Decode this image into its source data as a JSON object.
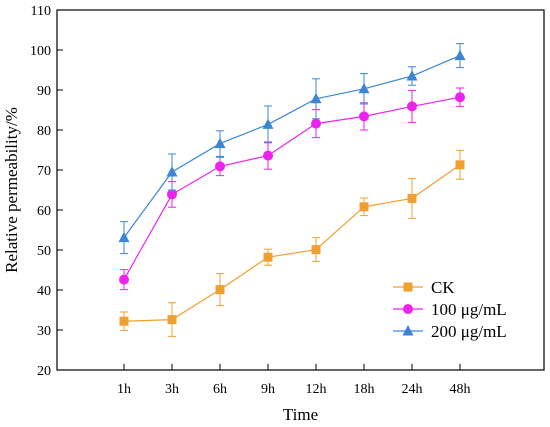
{
  "chart_data": {
    "type": "line",
    "title": "",
    "xlabel": "Time",
    "ylabel": "Relative permeability/%",
    "ylim": [
      20,
      110
    ],
    "yticks": [
      20,
      30,
      40,
      50,
      60,
      70,
      80,
      90,
      100,
      110
    ],
    "categories": [
      "1h",
      "3h",
      "6h",
      "9h",
      "12h",
      "18h",
      "24h",
      "48h"
    ],
    "grid": false,
    "legend_position": "bottom-right",
    "series": [
      {
        "name": "CK",
        "color": "#f0a030",
        "marker": "square",
        "values": [
          32.2,
          32.6,
          40.1,
          48.2,
          50.1,
          60.8,
          62.9,
          71.3
        ],
        "errors": [
          2.3,
          4.2,
          4.0,
          2.0,
          3.0,
          2.2,
          5.0,
          3.6
        ]
      },
      {
        "name": "100 μg/mL",
        "color": "#ee22ee",
        "marker": "circle",
        "values": [
          42.6,
          63.9,
          70.9,
          73.6,
          81.6,
          83.4,
          85.9,
          88.2
        ],
        "errors": [
          2.5,
          3.2,
          2.3,
          3.4,
          3.5,
          3.4,
          4.0,
          2.3
        ]
      },
      {
        "name": "200 μg/mL",
        "color": "#3d86d6",
        "marker": "triangle",
        "values": [
          53.1,
          69.5,
          76.6,
          81.4,
          87.8,
          90.3,
          93.5,
          98.6
        ],
        "errors": [
          4.0,
          4.5,
          3.2,
          4.6,
          5.0,
          3.8,
          2.3,
          3.0
        ]
      }
    ]
  }
}
